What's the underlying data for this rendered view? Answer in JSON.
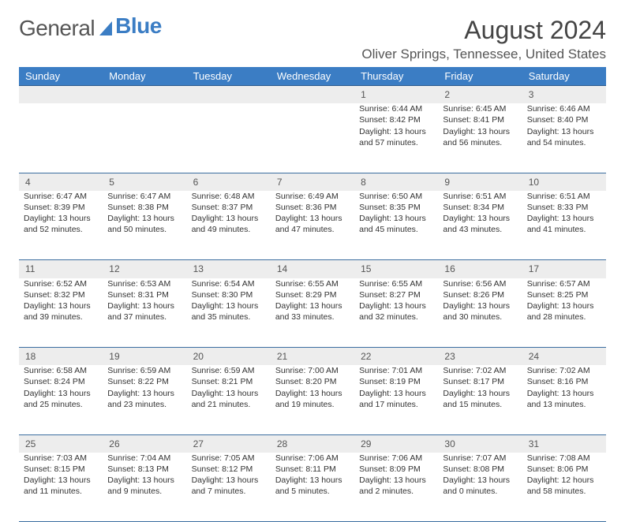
{
  "logo": {
    "text_a": "General",
    "text_b": "Blue"
  },
  "title": "August 2024",
  "location": "Oliver Springs, Tennessee, United States",
  "dayHeaders": [
    "Sunday",
    "Monday",
    "Tuesday",
    "Wednesday",
    "Thursday",
    "Friday",
    "Saturday"
  ],
  "colors": {
    "header_bg": "#3b7dc4",
    "daynum_bg": "#ededed",
    "rule": "#3b6ea0"
  },
  "weeks": [
    [
      null,
      null,
      null,
      null,
      {
        "n": "1",
        "sr": "6:44 AM",
        "ss": "8:42 PM",
        "dl": "13 hours and 57 minutes."
      },
      {
        "n": "2",
        "sr": "6:45 AM",
        "ss": "8:41 PM",
        "dl": "13 hours and 56 minutes."
      },
      {
        "n": "3",
        "sr": "6:46 AM",
        "ss": "8:40 PM",
        "dl": "13 hours and 54 minutes."
      }
    ],
    [
      {
        "n": "4",
        "sr": "6:47 AM",
        "ss": "8:39 PM",
        "dl": "13 hours and 52 minutes."
      },
      {
        "n": "5",
        "sr": "6:47 AM",
        "ss": "8:38 PM",
        "dl": "13 hours and 50 minutes."
      },
      {
        "n": "6",
        "sr": "6:48 AM",
        "ss": "8:37 PM",
        "dl": "13 hours and 49 minutes."
      },
      {
        "n": "7",
        "sr": "6:49 AM",
        "ss": "8:36 PM",
        "dl": "13 hours and 47 minutes."
      },
      {
        "n": "8",
        "sr": "6:50 AM",
        "ss": "8:35 PM",
        "dl": "13 hours and 45 minutes."
      },
      {
        "n": "9",
        "sr": "6:51 AM",
        "ss": "8:34 PM",
        "dl": "13 hours and 43 minutes."
      },
      {
        "n": "10",
        "sr": "6:51 AM",
        "ss": "8:33 PM",
        "dl": "13 hours and 41 minutes."
      }
    ],
    [
      {
        "n": "11",
        "sr": "6:52 AM",
        "ss": "8:32 PM",
        "dl": "13 hours and 39 minutes."
      },
      {
        "n": "12",
        "sr": "6:53 AM",
        "ss": "8:31 PM",
        "dl": "13 hours and 37 minutes."
      },
      {
        "n": "13",
        "sr": "6:54 AM",
        "ss": "8:30 PM",
        "dl": "13 hours and 35 minutes."
      },
      {
        "n": "14",
        "sr": "6:55 AM",
        "ss": "8:29 PM",
        "dl": "13 hours and 33 minutes."
      },
      {
        "n": "15",
        "sr": "6:55 AM",
        "ss": "8:27 PM",
        "dl": "13 hours and 32 minutes."
      },
      {
        "n": "16",
        "sr": "6:56 AM",
        "ss": "8:26 PM",
        "dl": "13 hours and 30 minutes."
      },
      {
        "n": "17",
        "sr": "6:57 AM",
        "ss": "8:25 PM",
        "dl": "13 hours and 28 minutes."
      }
    ],
    [
      {
        "n": "18",
        "sr": "6:58 AM",
        "ss": "8:24 PM",
        "dl": "13 hours and 25 minutes."
      },
      {
        "n": "19",
        "sr": "6:59 AM",
        "ss": "8:22 PM",
        "dl": "13 hours and 23 minutes."
      },
      {
        "n": "20",
        "sr": "6:59 AM",
        "ss": "8:21 PM",
        "dl": "13 hours and 21 minutes."
      },
      {
        "n": "21",
        "sr": "7:00 AM",
        "ss": "8:20 PM",
        "dl": "13 hours and 19 minutes."
      },
      {
        "n": "22",
        "sr": "7:01 AM",
        "ss": "8:19 PM",
        "dl": "13 hours and 17 minutes."
      },
      {
        "n": "23",
        "sr": "7:02 AM",
        "ss": "8:17 PM",
        "dl": "13 hours and 15 minutes."
      },
      {
        "n": "24",
        "sr": "7:02 AM",
        "ss": "8:16 PM",
        "dl": "13 hours and 13 minutes."
      }
    ],
    [
      {
        "n": "25",
        "sr": "7:03 AM",
        "ss": "8:15 PM",
        "dl": "13 hours and 11 minutes."
      },
      {
        "n": "26",
        "sr": "7:04 AM",
        "ss": "8:13 PM",
        "dl": "13 hours and 9 minutes."
      },
      {
        "n": "27",
        "sr": "7:05 AM",
        "ss": "8:12 PM",
        "dl": "13 hours and 7 minutes."
      },
      {
        "n": "28",
        "sr": "7:06 AM",
        "ss": "8:11 PM",
        "dl": "13 hours and 5 minutes."
      },
      {
        "n": "29",
        "sr": "7:06 AM",
        "ss": "8:09 PM",
        "dl": "13 hours and 2 minutes."
      },
      {
        "n": "30",
        "sr": "7:07 AM",
        "ss": "8:08 PM",
        "dl": "13 hours and 0 minutes."
      },
      {
        "n": "31",
        "sr": "7:08 AM",
        "ss": "8:06 PM",
        "dl": "12 hours and 58 minutes."
      }
    ]
  ],
  "labels": {
    "sunrise": "Sunrise: ",
    "sunset": "Sunset: ",
    "daylight": "Daylight: "
  }
}
